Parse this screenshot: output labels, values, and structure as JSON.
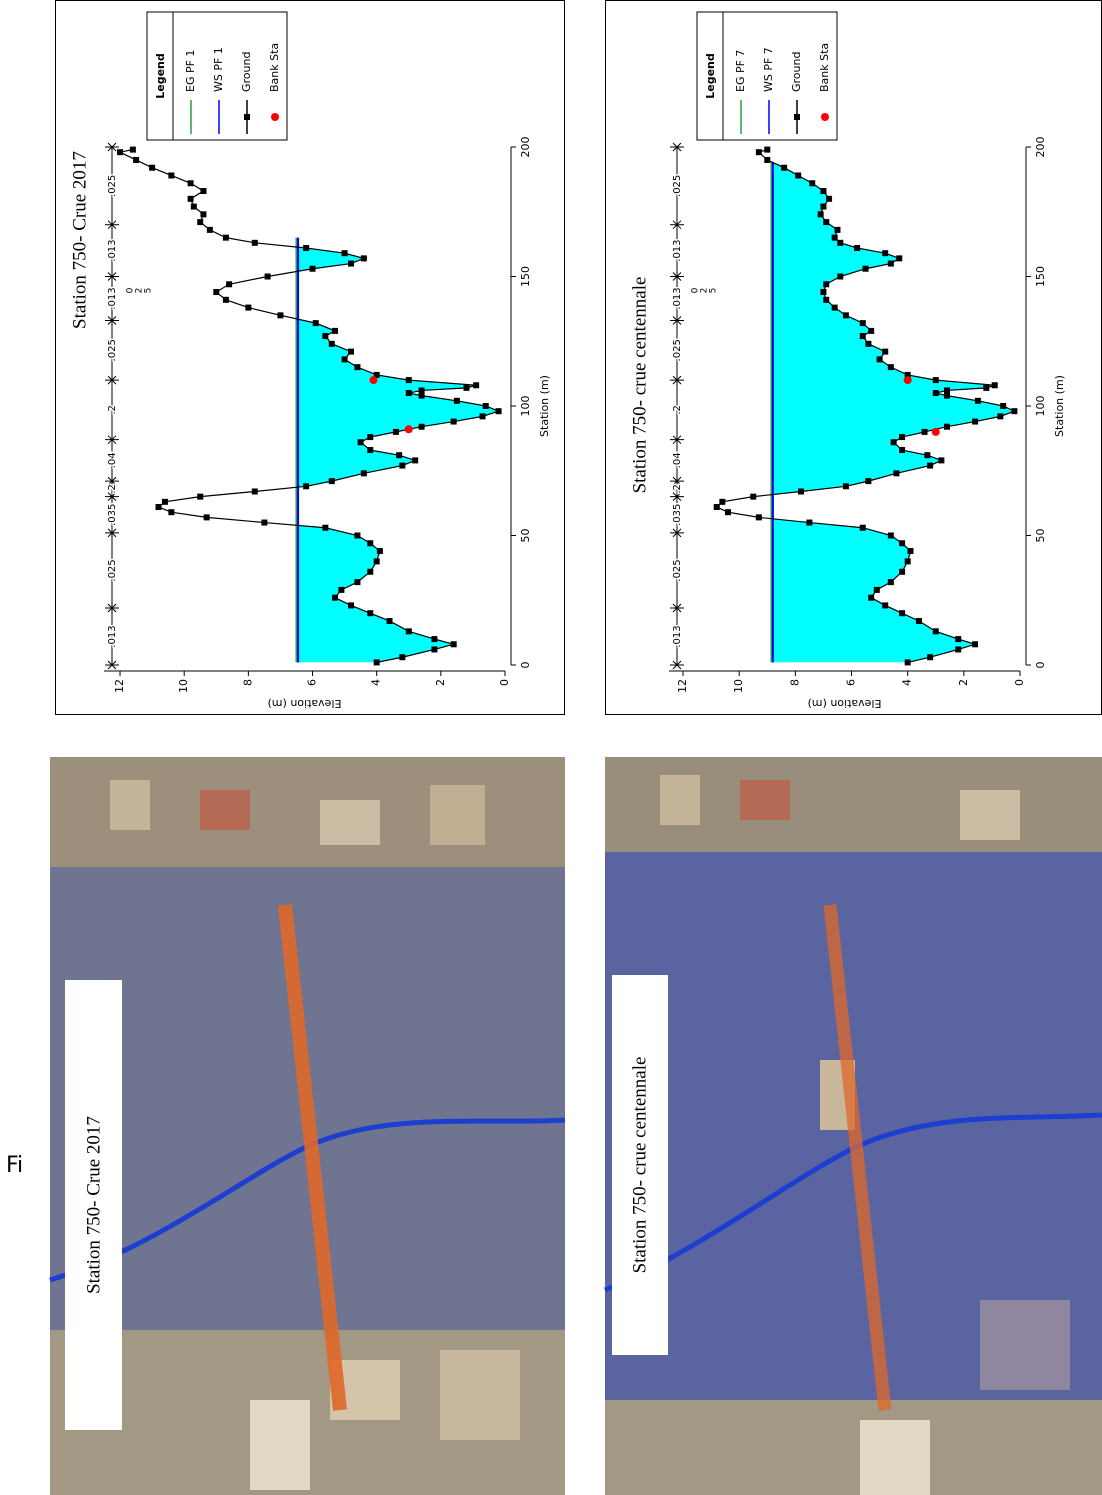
{
  "figure_label": "Fi",
  "images": [
    {
      "label": "Station 750- Crue 2017"
    },
    {
      "label": "Station 750- crue centennale"
    }
  ],
  "chart_data": [
    {
      "type": "line",
      "title": "Station 750- Crue 2017",
      "x_label": "Station (m)",
      "y_label": "Elevation (m)",
      "xlim": [
        0,
        200
      ],
      "ylim": [
        0,
        12.5
      ],
      "xticks": [
        0,
        50,
        100,
        150,
        200
      ],
      "yticks": [
        0,
        2,
        4,
        6,
        8,
        10,
        12
      ],
      "legend_title": "Legend",
      "n_values": [
        ".013",
        ".025",
        ".035",
        ".2",
        ".04",
        ".2",
        ".025",
        ".013",
        ".013",
        ".025"
      ],
      "n_breaks": [
        0,
        22,
        51,
        65,
        71,
        87,
        110,
        133,
        150,
        170,
        200
      ],
      "scale_labels": [
        "0",
        "2",
        "5"
      ],
      "series": [
        {
          "name": "EG PF 1",
          "color": "#2e9e3e",
          "x": [
            1,
            165
          ],
          "values": [
            6.5,
            6.5
          ]
        },
        {
          "name": "WS PF 1",
          "color": "#0000ff",
          "x": [
            1,
            165
          ],
          "values": [
            6.45,
            6.45
          ]
        },
        {
          "name": "Ground",
          "color": "#000000",
          "x": [
            1,
            3,
            6,
            8,
            10,
            13,
            17,
            20,
            23,
            26,
            29,
            32,
            36,
            40,
            44,
            47,
            50,
            53,
            55,
            57,
            59,
            61,
            63,
            65,
            67,
            69,
            71,
            74,
            77,
            79,
            81,
            83,
            86,
            88,
            90,
            92,
            94,
            96,
            98,
            100,
            102,
            104,
            105,
            106,
            107,
            108,
            110,
            112,
            115,
            118,
            121,
            124,
            127,
            129,
            132,
            135,
            138,
            141,
            144,
            147,
            150,
            153,
            155,
            157,
            159,
            161,
            163,
            165,
            168,
            171,
            174,
            177,
            180,
            183,
            186,
            189,
            192,
            195,
            198,
            199
          ],
          "values": [
            4.0,
            3.2,
            2.2,
            1.6,
            2.2,
            3.0,
            3.6,
            4.2,
            4.8,
            5.3,
            5.1,
            4.6,
            4.2,
            4.0,
            3.9,
            4.2,
            4.6,
            5.6,
            7.5,
            9.3,
            10.4,
            10.8,
            10.6,
            9.5,
            7.8,
            6.2,
            5.4,
            4.4,
            3.2,
            2.8,
            3.3,
            4.2,
            4.5,
            4.2,
            3.4,
            2.6,
            1.6,
            0.7,
            0.2,
            0.6,
            1.5,
            2.6,
            3.0,
            2.6,
            1.2,
            0.9,
            3.0,
            4.0,
            4.6,
            5.0,
            4.8,
            5.4,
            5.6,
            5.3,
            5.9,
            7.0,
            8.0,
            8.7,
            9.0,
            8.6,
            7.4,
            6.0,
            4.8,
            4.4,
            5.0,
            6.2,
            7.8,
            8.7,
            9.2,
            9.5,
            9.4,
            9.7,
            9.8,
            9.4,
            9.8,
            10.4,
            11.0,
            11.5,
            12.0,
            11.6
          ]
        },
        {
          "name": "Bank Sta",
          "color": "#ff0000",
          "x": [
            91,
            110
          ],
          "values": [
            3.0,
            4.1
          ]
        }
      ]
    },
    {
      "type": "line",
      "title": "Station 750- crue centennale",
      "x_label": "Station (m)",
      "y_label": "Elevation (m)",
      "xlim": [
        0,
        200
      ],
      "ylim": [
        0,
        12.5
      ],
      "xticks": [
        0,
        50,
        100,
        150,
        200
      ],
      "yticks": [
        0,
        2,
        4,
        6,
        8,
        10,
        12
      ],
      "legend_title": "Legend",
      "n_values": [
        ".013",
        ".025",
        ".035",
        ".2",
        ".04",
        ".2",
        ".025",
        ".013",
        ".013",
        ".025"
      ],
      "n_breaks": [
        0,
        22,
        51,
        65,
        71,
        87,
        110,
        133,
        150,
        170,
        200
      ],
      "scale_labels": [
        "0",
        "2",
        "5"
      ],
      "series": [
        {
          "name": "EG PF 7",
          "color": "#2e9e3e",
          "x": [
            1,
            194
          ],
          "values": [
            8.85,
            8.85
          ]
        },
        {
          "name": "WS PF 7",
          "color": "#0000ff",
          "x": [
            1,
            194
          ],
          "values": [
            8.8,
            8.8
          ]
        },
        {
          "name": "Ground",
          "color": "#000000",
          "x": [
            1,
            3,
            6,
            8,
            10,
            13,
            17,
            20,
            23,
            26,
            29,
            32,
            36,
            40,
            44,
            47,
            50,
            53,
            55,
            57,
            59,
            61,
            63,
            65,
            67,
            69,
            71,
            74,
            77,
            79,
            81,
            83,
            86,
            88,
            90,
            92,
            94,
            96,
            98,
            100,
            102,
            104,
            105,
            106,
            107,
            108,
            110,
            112,
            115,
            118,
            121,
            124,
            127,
            129,
            132,
            135,
            138,
            141,
            144,
            147,
            150,
            153,
            155,
            157,
            159,
            161,
            163,
            165,
            168,
            171,
            174,
            177,
            180,
            183,
            186,
            189,
            192,
            195,
            198,
            199
          ],
          "values": [
            4.0,
            3.2,
            2.2,
            1.6,
            2.2,
            3.0,
            3.6,
            4.2,
            4.8,
            5.3,
            5.1,
            4.6,
            4.2,
            4.0,
            3.9,
            4.2,
            4.6,
            5.6,
            7.5,
            9.3,
            10.4,
            10.8,
            10.6,
            9.5,
            7.8,
            6.2,
            5.4,
            4.4,
            3.2,
            2.8,
            3.3,
            4.2,
            4.5,
            4.2,
            3.4,
            2.6,
            1.6,
            0.7,
            0.2,
            0.6,
            1.5,
            2.6,
            3.0,
            2.6,
            1.2,
            0.9,
            3.0,
            4.0,
            4.6,
            5.0,
            4.8,
            5.4,
            5.6,
            5.3,
            5.6,
            6.2,
            6.6,
            6.9,
            7.0,
            6.9,
            6.4,
            5.5,
            4.6,
            4.3,
            4.8,
            5.8,
            6.4,
            6.6,
            6.5,
            6.9,
            7.1,
            7.0,
            6.8,
            7.0,
            7.4,
            7.9,
            8.4,
            9.0,
            9.3,
            9.0
          ]
        },
        {
          "name": "Bank Sta",
          "color": "#ff0000",
          "x": [
            90,
            110
          ],
          "values": [
            3.0,
            4.0
          ]
        }
      ]
    }
  ]
}
